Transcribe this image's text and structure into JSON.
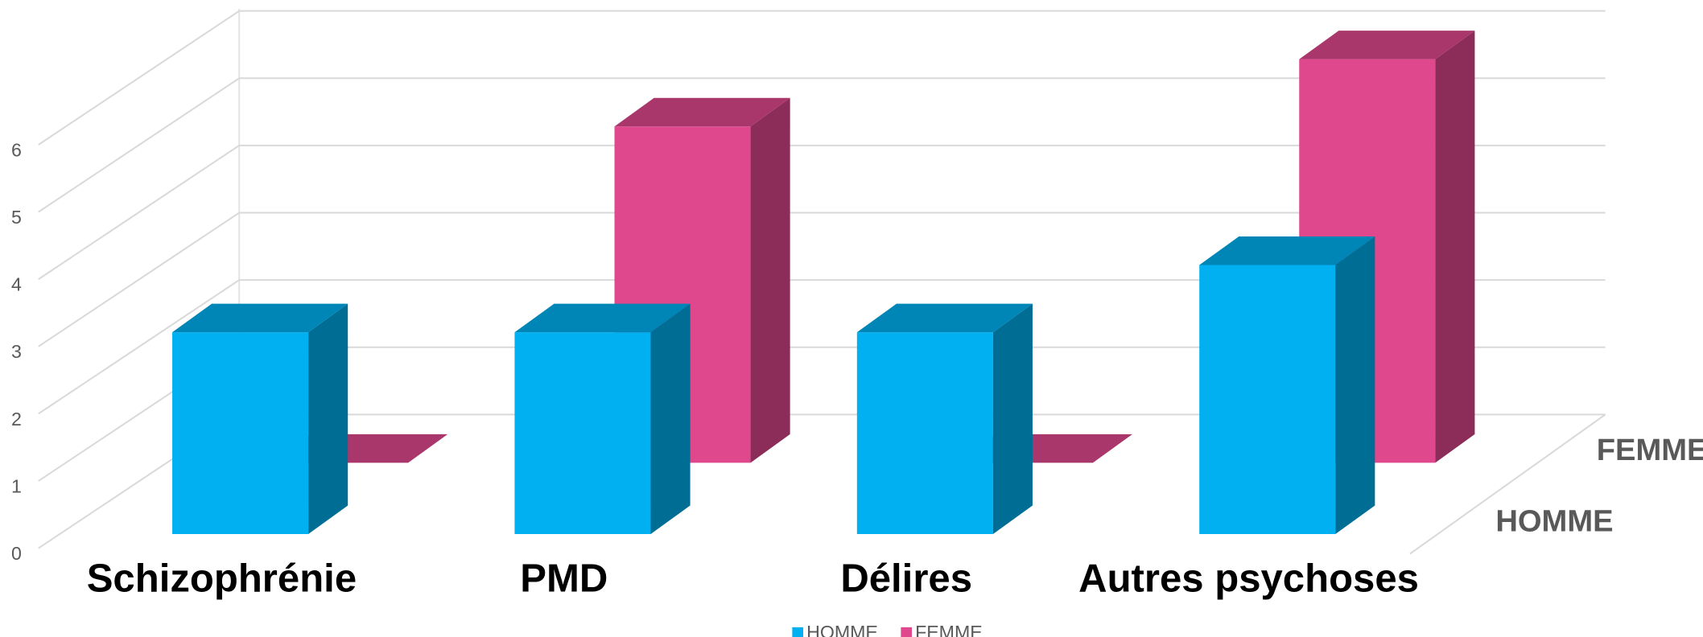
{
  "chart_data": {
    "type": "bar3d",
    "categories": [
      "Schizophrénie",
      "PMD",
      "Délires",
      "Autres psychoses"
    ],
    "series": [
      {
        "name": "HOMME",
        "color": "#00b0f0",
        "values": [
          3,
          3,
          3,
          4
        ]
      },
      {
        "name": "FEMME",
        "color": "#e0488e",
        "values": [
          0,
          5,
          0,
          6
        ]
      }
    ],
    "ylim": [
      0,
      6
    ],
    "yticks": [
      0,
      1,
      2,
      3,
      4,
      5,
      6
    ],
    "grid": true,
    "legend": "bottom"
  }
}
